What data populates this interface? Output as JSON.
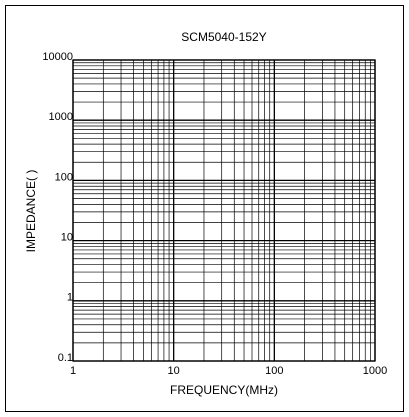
{
  "chart_data": {
    "type": "line",
    "title": "SCM5040-152Y",
    "x_label": "FREQUENCY(MHz)",
    "y_label": "IMPEDANCE( )",
    "xlim": [
      1,
      1000
    ],
    "xticks": [
      1,
      10,
      100,
      1000
    ],
    "ylim": [
      0.1,
      10000
    ],
    "yticks": [
      0.1,
      1,
      10,
      100,
      1000,
      10000
    ],
    "xscale": "log",
    "yscale": "log",
    "grid": true,
    "minor_grid": true,
    "series": []
  }
}
